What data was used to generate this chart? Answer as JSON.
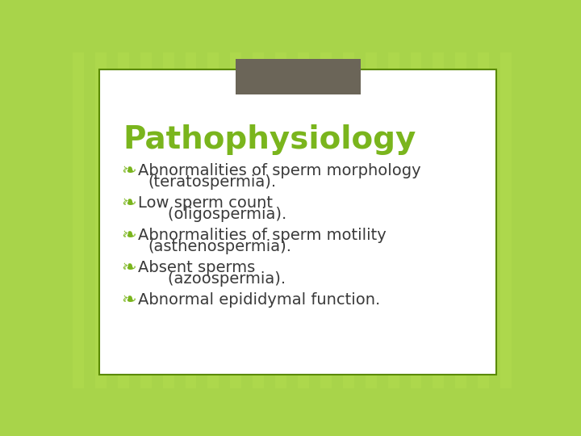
{
  "title": "Pathophysiology",
  "title_color": "#7ab51d",
  "title_fontsize": 28,
  "background_color_light": "#a8d44a",
  "background_color_dark": "#7ab51d",
  "card_color": "#ffffff",
  "card_border_color": "#5a8a00",
  "header_box_color": "#6b6558",
  "bullet_color": "#7ab51d",
  "text_color": "#3a3a3a",
  "bullet_lines": [
    [
      "Abnormalities of sperm morphology",
      "(teratospermia)."
    ],
    [
      "Low sperm count",
      "    (oligospermia)."
    ],
    [
      "Abnormalities of sperm motility",
      "(asthenospermia)."
    ],
    [
      "Absent sperms",
      "    (azoospermia)."
    ],
    [
      "Abnormal epididymal function."
    ]
  ],
  "text_fontsize": 14,
  "figsize": [
    7.2,
    5.4
  ],
  "dpi": 100
}
